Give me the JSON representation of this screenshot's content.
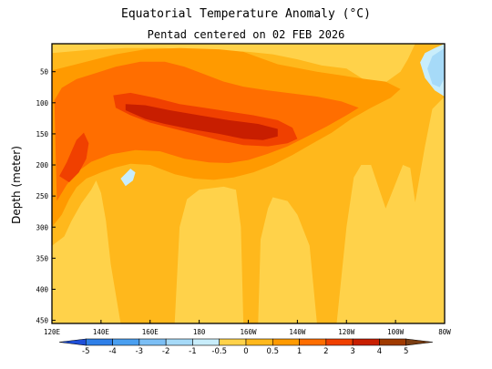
{
  "chart_data": {
    "type": "heatmap",
    "title": "Equatorial Temperature Anomaly (°C)",
    "subtitle": "Pentad centered on 02 FEB 2026",
    "xlabel": "",
    "ylabel": "Depth (meter)",
    "x_tick_labels": [
      "120E",
      "140E",
      "160E",
      "180",
      "160W",
      "140W",
      "120W",
      "100W",
      "80W"
    ],
    "x_tick_values": [
      120,
      140,
      160,
      180,
      200,
      220,
      240,
      260,
      280
    ],
    "xlim": [
      120,
      280
    ],
    "y_tick_values": [
      50,
      100,
      150,
      200,
      250,
      300,
      350,
      400,
      450
    ],
    "ylim": [
      455,
      5
    ],
    "y_inverted": true,
    "colorbar": {
      "labels": [
        "-5",
        "-4",
        "-3",
        "-2",
        "-1",
        "-0.5",
        "0",
        "0.5",
        "1",
        "2",
        "3",
        "4",
        "5"
      ],
      "levels": [
        -5,
        -4,
        -3,
        -2,
        -1,
        -0.5,
        0,
        0.5,
        1,
        2,
        3,
        4,
        5
      ],
      "colors": [
        "#1f4fd8",
        "#2f7fe8",
        "#4a9ff0",
        "#7cbff5",
        "#a6daf8",
        "#c8edfb",
        "#ffd24a",
        "#ffb81c",
        "#ff9a00",
        "#ff6e00",
        "#f04000",
        "#c81e00",
        "#a03a00",
        "#7a3d12"
      ]
    },
    "contours": [
      {
        "level": 0.5,
        "points": [
          [
            120,
            330
          ],
          [
            125,
            315
          ],
          [
            128,
            290
          ],
          [
            132,
            262
          ],
          [
            136,
            240
          ],
          [
            138,
            225
          ],
          [
            140,
            245
          ],
          [
            142,
            290
          ],
          [
            144,
            360
          ],
          [
            148,
            455
          ],
          [
            170,
            455
          ],
          [
            172,
            300
          ],
          [
            175,
            255
          ],
          [
            180,
            240
          ],
          [
            190,
            235
          ],
          [
            195,
            240
          ],
          [
            197,
            300
          ],
          [
            198,
            455
          ],
          [
            204,
            455
          ],
          [
            205,
            320
          ],
          [
            208,
            270
          ],
          [
            210,
            252
          ],
          [
            216,
            258
          ],
          [
            220,
            280
          ],
          [
            225,
            330
          ],
          [
            228,
            455
          ],
          [
            236,
            455
          ],
          [
            240,
            300
          ],
          [
            243,
            220
          ],
          [
            246,
            200
          ],
          [
            250,
            200
          ],
          [
            256,
            270
          ],
          [
            260,
            230
          ],
          [
            263,
            200
          ],
          [
            266,
            205
          ],
          [
            268,
            260
          ],
          [
            272,
            170
          ],
          [
            275,
            110
          ],
          [
            280,
            90
          ],
          [
            280,
            5
          ],
          [
            268,
            5
          ],
          [
            265,
            30
          ],
          [
            262,
            50
          ],
          [
            255,
            70
          ],
          [
            248,
            65
          ],
          [
            240,
            45
          ],
          [
            230,
            40
          ],
          [
            220,
            30
          ],
          [
            210,
            22
          ],
          [
            200,
            18
          ],
          [
            185,
            15
          ],
          [
            165,
            12
          ],
          [
            150,
            12
          ],
          [
            135,
            15
          ],
          [
            120,
            20
          ]
        ]
      },
      {
        "level": 1,
        "points": [
          [
            120,
            300
          ],
          [
            124,
            280
          ],
          [
            127,
            255
          ],
          [
            130,
            236
          ],
          [
            134,
            222
          ],
          [
            140,
            212
          ],
          [
            146,
            204
          ],
          [
            152,
            198
          ],
          [
            160,
            200
          ],
          [
            170,
            215
          ],
          [
            178,
            222
          ],
          [
            186,
            224
          ],
          [
            194,
            220
          ],
          [
            202,
            212
          ],
          [
            210,
            200
          ],
          [
            218,
            184
          ],
          [
            226,
            166
          ],
          [
            234,
            148
          ],
          [
            242,
            126
          ],
          [
            250,
            108
          ],
          [
            258,
            92
          ],
          [
            262,
            78
          ],
          [
            256,
            66
          ],
          [
            248,
            62
          ],
          [
            238,
            56
          ],
          [
            228,
            50
          ],
          [
            220,
            44
          ],
          [
            212,
            38
          ],
          [
            205,
            28
          ],
          [
            198,
            18
          ],
          [
            188,
            14
          ],
          [
            172,
            12
          ],
          [
            158,
            14
          ],
          [
            146,
            22
          ],
          [
            136,
            32
          ],
          [
            128,
            40
          ],
          [
            120,
            48
          ]
        ]
      },
      {
        "level": 2,
        "points": [
          [
            122,
            258
          ],
          [
            126,
            232
          ],
          [
            130,
            212
          ],
          [
            136,
            195
          ],
          [
            144,
            183
          ],
          [
            154,
            176
          ],
          [
            164,
            178
          ],
          [
            174,
            190
          ],
          [
            184,
            196
          ],
          [
            192,
            197
          ],
          [
            200,
            192
          ],
          [
            208,
            182
          ],
          [
            216,
            170
          ],
          [
            224,
            154
          ],
          [
            232,
            138
          ],
          [
            240,
            120
          ],
          [
            245,
            108
          ],
          [
            238,
            98
          ],
          [
            228,
            90
          ],
          [
            218,
            85
          ],
          [
            208,
            80
          ],
          [
            198,
            74
          ],
          [
            190,
            66
          ],
          [
            182,
            54
          ],
          [
            174,
            42
          ],
          [
            166,
            34
          ],
          [
            156,
            34
          ],
          [
            146,
            42
          ],
          [
            138,
            52
          ],
          [
            130,
            62
          ],
          [
            124,
            76
          ],
          [
            121,
            96
          ]
        ]
      },
      {
        "level": 3,
        "points": [
          [
            146,
            108
          ],
          [
            152,
            120
          ],
          [
            160,
            132
          ],
          [
            168,
            140
          ],
          [
            178,
            150
          ],
          [
            188,
            160
          ],
          [
            198,
            168
          ],
          [
            208,
            170
          ],
          [
            216,
            165
          ],
          [
            220,
            158
          ],
          [
            218,
            140
          ],
          [
            212,
            128
          ],
          [
            202,
            120
          ],
          [
            192,
            114
          ],
          [
            182,
            108
          ],
          [
            172,
            102
          ],
          [
            162,
            92
          ],
          [
            152,
            84
          ],
          [
            145,
            88
          ]
        ]
      },
      {
        "level": 4,
        "points": [
          [
            150,
            112
          ],
          [
            158,
            126
          ],
          [
            166,
            134
          ],
          [
            176,
            142
          ],
          [
            188,
            150
          ],
          [
            198,
            158
          ],
          [
            206,
            160
          ],
          [
            212,
            154
          ],
          [
            212,
            142
          ],
          [
            204,
            134
          ],
          [
            192,
            128
          ],
          [
            180,
            120
          ],
          [
            168,
            112
          ],
          [
            158,
            104
          ],
          [
            150,
            102
          ]
        ]
      },
      {
        "level": 3,
        "points": [
          [
            123,
            218
          ],
          [
            126,
            196
          ],
          [
            128,
            178
          ],
          [
            130,
            160
          ],
          [
            133,
            148
          ],
          [
            135,
            165
          ],
          [
            134,
            190
          ],
          [
            131,
            212
          ],
          [
            127,
            228
          ]
        ]
      },
      {
        "level": -0.5,
        "points": [
          [
            280,
            5
          ],
          [
            280,
            90
          ],
          [
            276,
            80
          ],
          [
            272,
            60
          ],
          [
            270,
            35
          ],
          [
            272,
            20
          ],
          [
            276,
            12
          ]
        ]
      },
      {
        "level": -1,
        "points": [
          [
            280,
            12
          ],
          [
            280,
            60
          ],
          [
            278,
            75
          ],
          [
            275,
            70
          ],
          [
            273,
            45
          ],
          [
            275,
            25
          ]
        ]
      },
      {
        "level": -0.5,
        "points": [
          [
            148,
            222
          ],
          [
            150,
            214
          ],
          [
            152,
            206
          ],
          [
            154,
            212
          ],
          [
            153,
            225
          ],
          [
            150,
            234
          ]
        ]
      }
    ]
  }
}
